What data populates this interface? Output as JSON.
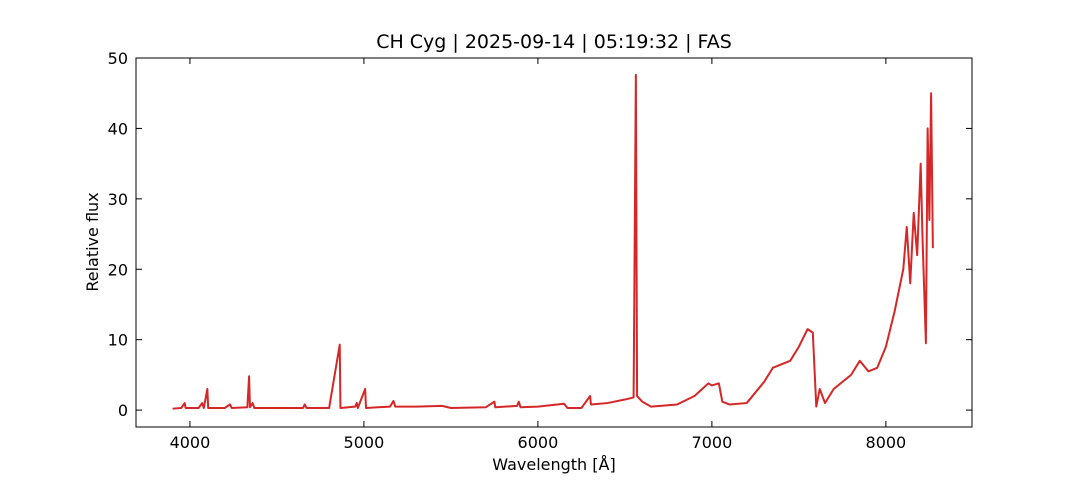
{
  "chart_data": {
    "type": "line",
    "title": "CH Cyg | 2025-09-14 | 05:19:32 | FAS",
    "xlabel": "Wavelength [Å]",
    "ylabel": "Relative flux",
    "x": [
      3900,
      3950,
      3970,
      3975,
      4050,
      4070,
      4080,
      4100,
      4105,
      4200,
      4230,
      4240,
      4330,
      4340,
      4345,
      4360,
      4370,
      4500,
      4650,
      4660,
      4670,
      4800,
      4861,
      4865,
      4950,
      4959,
      4965,
      5007,
      5012,
      5150,
      5170,
      5180,
      5300,
      5450,
      5500,
      5700,
      5750,
      5755,
      5880,
      5890,
      5900,
      6000,
      6150,
      6170,
      6250,
      6300,
      6305,
      6400,
      6500,
      6550,
      6563,
      6570,
      6600,
      6650,
      6800,
      6900,
      6980,
      7000,
      7040,
      7060,
      7100,
      7200,
      7300,
      7350,
      7400,
      7450,
      7500,
      7550,
      7580,
      7600,
      7620,
      7650,
      7700,
      7800,
      7850,
      7900,
      7950,
      8000,
      8050,
      8100,
      8120,
      8140,
      8160,
      8180,
      8200,
      8210,
      8230,
      8240,
      8250,
      8260,
      8270
    ],
    "series": [
      {
        "color": "#d62728",
        "values": [
          0.2,
          0.3,
          1.0,
          0.3,
          0.3,
          1.0,
          0.3,
          3.0,
          0.3,
          0.3,
          0.8,
          0.3,
          0.4,
          4.8,
          0.4,
          1.0,
          0.3,
          0.3,
          0.3,
          0.8,
          0.3,
          0.3,
          9.3,
          0.3,
          0.5,
          1.0,
          0.3,
          3.0,
          0.3,
          0.5,
          1.3,
          0.5,
          0.5,
          0.6,
          0.3,
          0.4,
          1.2,
          0.4,
          0.6,
          1.2,
          0.4,
          0.5,
          0.9,
          0.3,
          0.3,
          2.0,
          0.8,
          1.0,
          1.5,
          1.8,
          47.6,
          2.0,
          1.2,
          0.5,
          0.8,
          2.0,
          3.8,
          3.5,
          3.8,
          1.2,
          0.8,
          1.0,
          4.0,
          6.0,
          6.5,
          7.0,
          9.0,
          11.5,
          11.0,
          0.5,
          3.0,
          1.0,
          3.0,
          5.0,
          7.0,
          5.5,
          6.0,
          9.0,
          14.0,
          20.0,
          26.0,
          18.0,
          28.0,
          22.0,
          35.0,
          25.0,
          9.5,
          40.0,
          27.0,
          45.0,
          23.0
        ]
      }
    ],
    "xlim": [
      3690,
      8495
    ],
    "ylim": [
      -2.4,
      50
    ],
    "xticks": [
      4000,
      5000,
      6000,
      7000,
      8000
    ],
    "yticks": [
      0,
      10,
      20,
      30,
      40,
      50
    ]
  }
}
